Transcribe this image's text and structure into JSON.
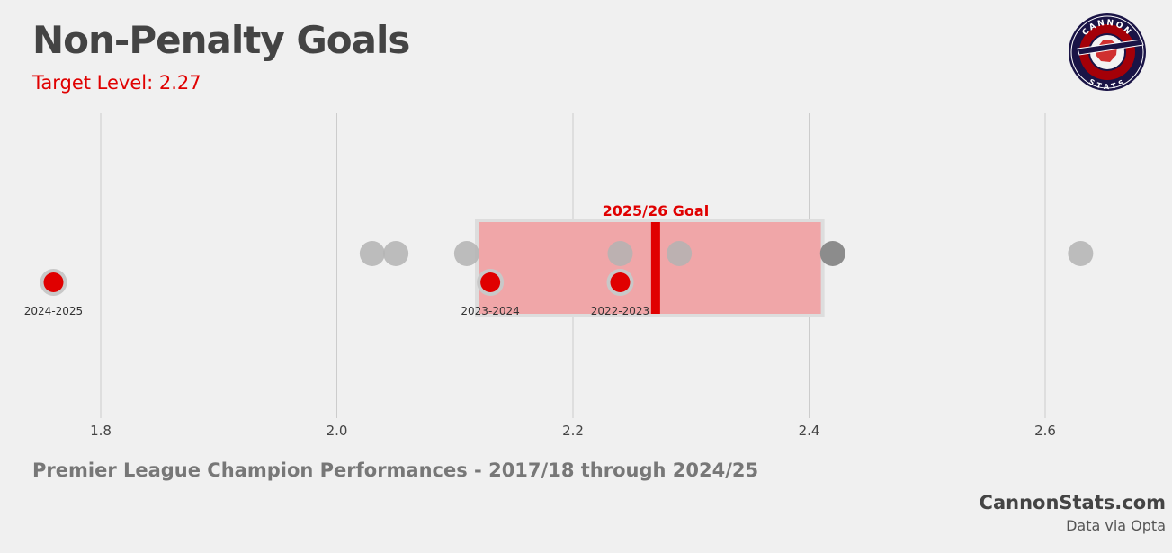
{
  "header": {
    "title": "Non-Penalty Goals",
    "subtitle": "Target Level: 2.27"
  },
  "logo": {
    "top_text": "CANNON",
    "bottom_text": "STATS"
  },
  "footer": {
    "caption": "Premier League Champion Performances - 2017/18 through 2024/25",
    "brand": "CannonStats.com",
    "source": "Data via Opta"
  },
  "colors": {
    "background": "#f0f0f0",
    "accent": "#e00000",
    "grey_point": "#b3b3b3",
    "grey_point_dark": "#8c8c8c",
    "band_fill": "#f0a6a8",
    "band_border": "#dddddd"
  },
  "chart_data": {
    "type": "scatter",
    "title": "Non-Penalty Goals",
    "xlabel": "",
    "ylabel": "",
    "xlim": [
      1.8,
      2.6
    ],
    "x_ticks": [
      1.8,
      2.0,
      2.2,
      2.4,
      2.6
    ],
    "x_tick_labels": [
      "1.8",
      "2.0",
      "2.2",
      "2.4",
      "2.6"
    ],
    "grid": "vertical",
    "target": {
      "label": "2025/26 Goal",
      "value": 2.27,
      "range": [
        2.12,
        2.41
      ]
    },
    "series": [
      {
        "values": [
          {
            "x": 2.03
          },
          {
            "x": 2.05
          },
          {
            "x": 2.11
          },
          {
            "x": 2.24
          },
          {
            "x": 2.29
          },
          {
            "x": 2.63
          }
        ]
      },
      {
        "values": [
          {
            "x": 2.42
          }
        ]
      },
      {
        "values": [
          {
            "x": 1.76,
            "label": "2024-2025"
          },
          {
            "x": 2.13,
            "label": "2023-2024"
          },
          {
            "x": 2.24,
            "label": "2022-2023"
          }
        ]
      }
    ]
  }
}
